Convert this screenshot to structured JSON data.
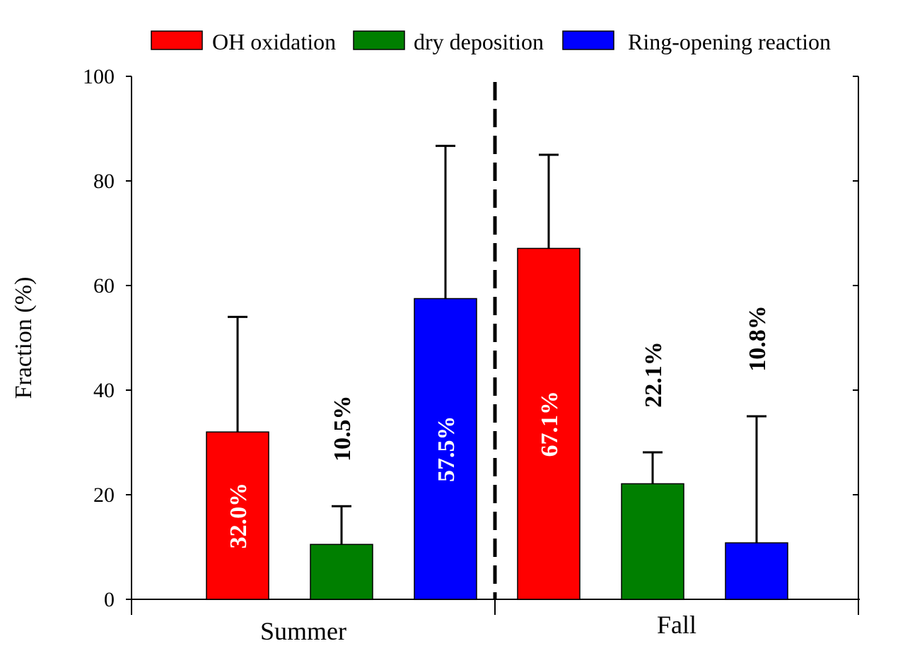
{
  "chart_data": {
    "type": "bar",
    "title": "",
    "xlabel": "",
    "ylabel": "Fraction (%)",
    "ylim": [
      0,
      100
    ],
    "yticks": [
      0,
      20,
      40,
      60,
      80,
      100
    ],
    "grid": false,
    "legend_position": "top",
    "groups": [
      "Summer",
      "Fall"
    ],
    "series": [
      {
        "name": "OH oxidation",
        "color": "#ff0000",
        "values": [
          32.0,
          67.1
        ],
        "errors": [
          54.0,
          85.0
        ],
        "labels": [
          "32.0%",
          "67.1%"
        ]
      },
      {
        "name": "dry deposition",
        "color": "#007f00",
        "values": [
          10.5,
          22.1
        ],
        "errors": [
          17.8,
          28.1
        ],
        "labels": [
          "10.5%",
          "22.1%"
        ]
      },
      {
        "name": "Ring-opening reaction",
        "color": "#0000ff",
        "values": [
          57.5,
          10.8
        ],
        "errors": [
          86.7,
          35.0
        ],
        "labels": [
          "57.5%",
          "10.8%"
        ]
      }
    ],
    "group_separator": "dashed"
  }
}
